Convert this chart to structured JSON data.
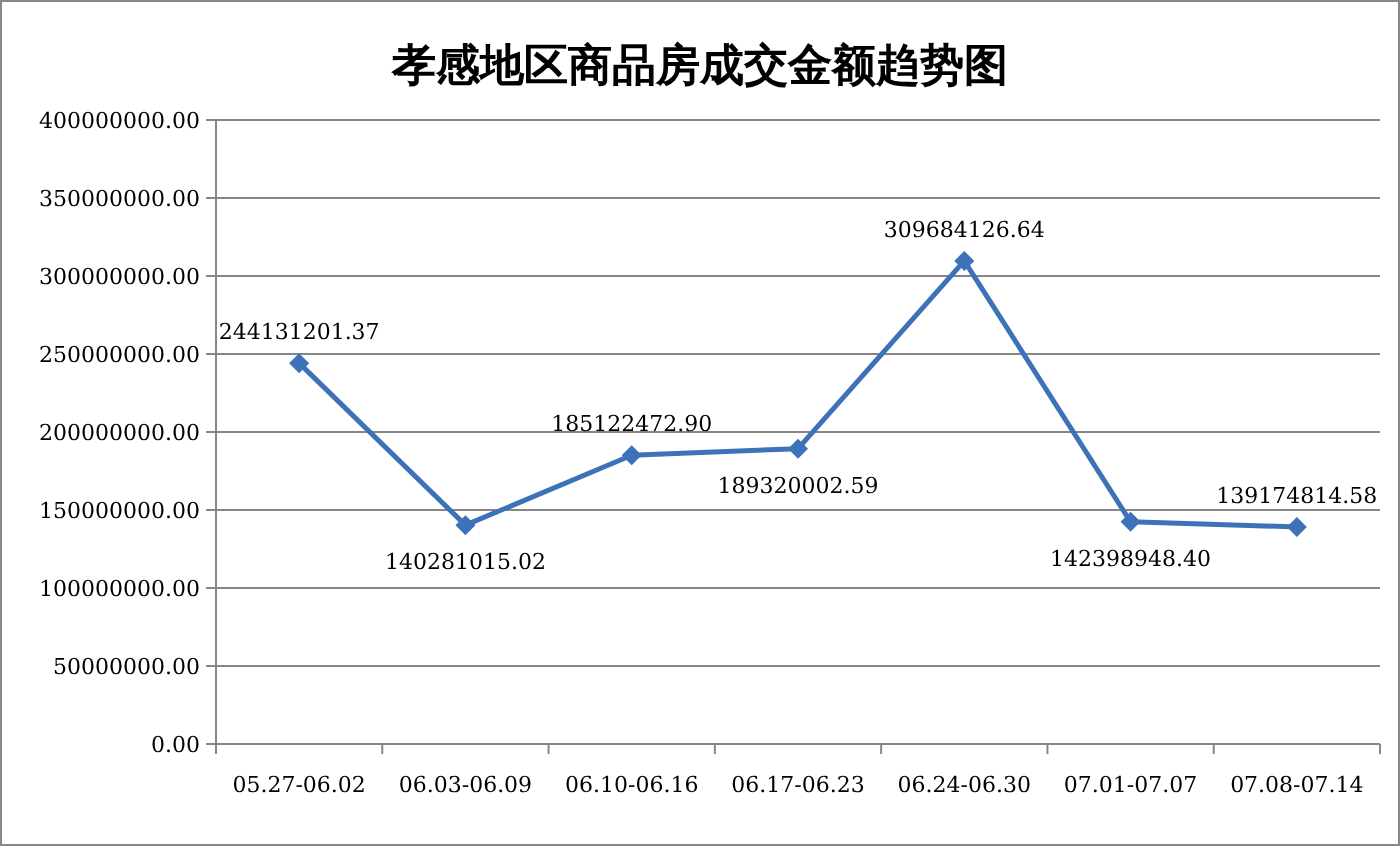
{
  "chart_data": {
    "type": "line",
    "title": "孝感地区商品房成交金额趋势图",
    "categories": [
      "05.27-06.02",
      "06.03-06.09",
      "06.10-06.16",
      "06.17-06.23",
      "06.24-06.30",
      "07.01-07.07",
      "07.08-07.14"
    ],
    "series": [
      {
        "color": "#3d72b8",
        "values": [
          244131201.37,
          140281015.02,
          185122472.9,
          189320002.59,
          309684126.64,
          142398948.4,
          139174814.58
        ],
        "value_labels": [
          "244131201.37",
          "140281015.02",
          "185122472.90",
          "189320002.59",
          "309684126.64",
          "142398948.40",
          "139174814.58"
        ]
      }
    ],
    "ylim": [
      0,
      400000000
    ],
    "yticks": [
      {
        "value": 0,
        "label": "0.00"
      },
      {
        "value": 50000000,
        "label": "50000000.00"
      },
      {
        "value": 100000000,
        "label": "100000000.00"
      },
      {
        "value": 150000000,
        "label": "150000000.00"
      },
      {
        "value": 200000000,
        "label": "200000000.00"
      },
      {
        "value": 250000000,
        "label": "250000000.00"
      },
      {
        "value": 300000000,
        "label": "300000000.00"
      },
      {
        "value": 350000000,
        "label": "350000000.00"
      },
      {
        "value": 400000000,
        "label": "400000000.00"
      }
    ],
    "grid": "y",
    "marker": "diamond",
    "line_style": "solid"
  }
}
